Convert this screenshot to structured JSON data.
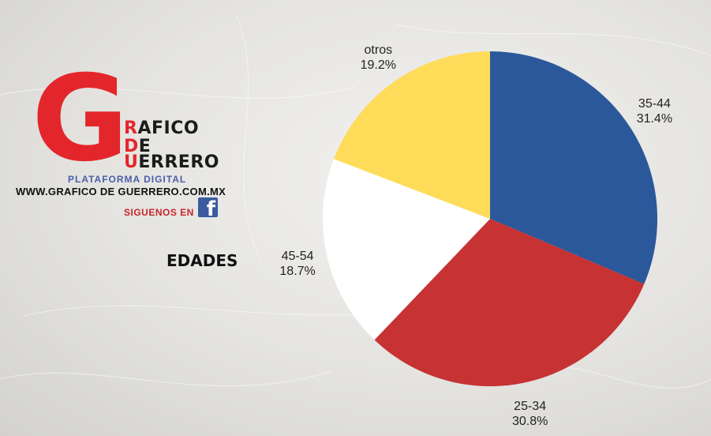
{
  "logo": {
    "big_letter": "G",
    "line1_first": "R",
    "line1_rest": "AFICO",
    "line2_first": "D",
    "line2_rest": "E",
    "line3_first": "U",
    "line3_rest": "ERRERO",
    "subtitle": "PLATAFORMA DIGITAL",
    "website": "WWW.GRAFICO DE GUERRERO.COM.MX",
    "follow_text": "SIGUENOS EN",
    "facebook_glyph": "f"
  },
  "chart_heading": "EDADES",
  "colors": {
    "brand_red": "#e3262b",
    "facebook_blue": "#3b5aa0"
  },
  "chart_data": {
    "type": "pie",
    "title": "EDADES",
    "labels": [
      "35-44",
      "25-34",
      "45-54",
      "otros"
    ],
    "values": [
      31.4,
      30.8,
      18.7,
      19.2
    ],
    "value_labels": [
      "31.4%",
      "30.8%",
      "18.7%",
      "19.2%"
    ],
    "colors": [
      "#2b589a",
      "#c73233",
      "#ffffff",
      "#fedc5a"
    ],
    "start_angle": "12 o'clock",
    "direction": "clockwise"
  }
}
